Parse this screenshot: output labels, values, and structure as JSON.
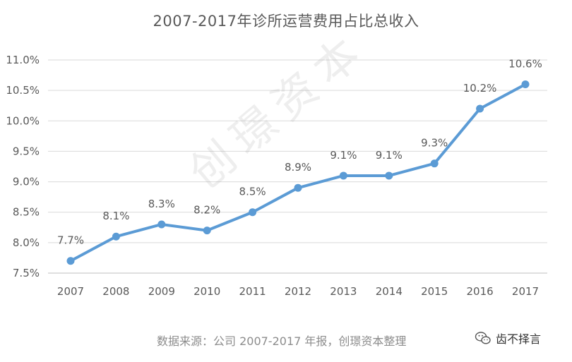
{
  "chart_data": {
    "type": "line",
    "title": "2007-2017年诊所运营费用占比总收入",
    "x": [
      "2007",
      "2008",
      "2009",
      "2010",
      "2011",
      "2012",
      "2013",
      "2014",
      "2015",
      "2016",
      "2017"
    ],
    "series": [
      {
        "values": [
          7.7,
          8.1,
          8.3,
          8.2,
          8.5,
          8.9,
          9.1,
          9.1,
          9.3,
          10.2,
          10.6
        ],
        "labels": [
          "7.7%",
          "8.1%",
          "8.3%",
          "8.2%",
          "8.5%",
          "8.9%",
          "9.1%",
          "9.1%",
          "9.3%",
          "10.2%",
          "10.6%"
        ]
      }
    ],
    "yticks": [
      "7.5%",
      "8.0%",
      "8.5%",
      "9.0%",
      "9.5%",
      "10.0%",
      "10.5%",
      "11.0%"
    ],
    "ylim": [
      7.5,
      11.0
    ],
    "grid": true,
    "xlabel": "",
    "ylabel": ""
  },
  "source_text": "数据来源：公司 2007-2017 年报，创璟资本整理",
  "watermark_text": "创璟资本",
  "brand": {
    "label": "齿不择言",
    "icon": "wechat-icon"
  },
  "colors": {
    "line": "#5b9bd5",
    "grid": "#d9d9d9",
    "text": "#595959",
    "axis": "#bfbfbf"
  }
}
